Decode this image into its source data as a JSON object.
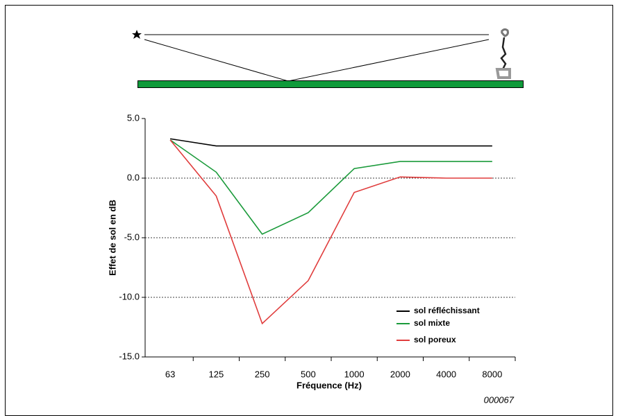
{
  "chart_data": {
    "type": "line",
    "ylabel": "Effet de sol en dB",
    "xlabel": "Fréquence (Hz)",
    "annotation": "000067",
    "categories": [
      "63",
      "125",
      "250",
      "500",
      "1000",
      "2000",
      "4000",
      "8000"
    ],
    "series": [
      {
        "name": "sol réfléchissant",
        "color": "#000000",
        "values": [
          3.3,
          2.7,
          2.7,
          2.7,
          2.7,
          2.7,
          2.7,
          2.7
        ]
      },
      {
        "name": "sol mixte",
        "color": "#1a9a3a",
        "values": [
          3.2,
          0.5,
          -4.7,
          -2.9,
          0.8,
          1.4,
          1.4,
          1.4
        ]
      },
      {
        "name": "sol poreux",
        "color": "#e03c3c",
        "values": [
          3.2,
          -1.5,
          -12.2,
          -8.6,
          -1.2,
          0.1,
          0.0,
          0.0
        ]
      }
    ],
    "ylim": [
      -15,
      5
    ],
    "yticks": [
      {
        "value": 5,
        "label": "5.0"
      },
      {
        "value": 0,
        "label": "0.0"
      },
      {
        "value": -5,
        "label": "-5.0"
      },
      {
        "value": -10,
        "label": "-10.0"
      },
      {
        "value": -15,
        "label": "-15.0"
      }
    ],
    "grid": true,
    "legend": "lower-right"
  }
}
